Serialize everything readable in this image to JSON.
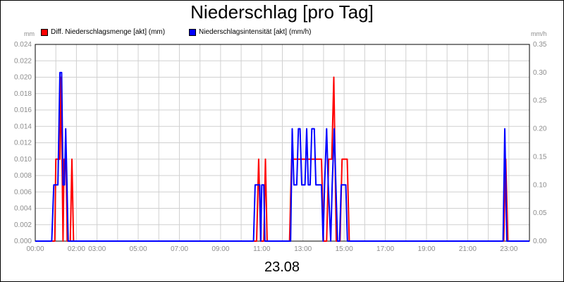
{
  "chart_data": {
    "type": "line",
    "title": "Niederschlag [pro Tag]",
    "xlabel": "23.08",
    "ylabel_left": "mm",
    "ylabel_right": "mm/h",
    "xlim": [
      0,
      24
    ],
    "ylim_left": [
      0,
      0.024
    ],
    "ylim_right": [
      0,
      0.35
    ],
    "grid": true,
    "legend_position": "top-left",
    "x_ticks": [
      {
        "x": 0,
        "label": "00:00"
      },
      {
        "x": 2,
        "label": "02:00"
      },
      {
        "x": 3,
        "label": "03:00"
      },
      {
        "x": 5,
        "label": "05:00"
      },
      {
        "x": 7,
        "label": "07:00"
      },
      {
        "x": 9,
        "label": "09:00"
      },
      {
        "x": 11,
        "label": "11:00"
      },
      {
        "x": 13,
        "label": "13:00"
      },
      {
        "x": 15,
        "label": "15:00"
      },
      {
        "x": 17,
        "label": "17:00"
      },
      {
        "x": 19,
        "label": "19:00"
      },
      {
        "x": 21,
        "label": "21:00"
      },
      {
        "x": 23,
        "label": "23:00"
      }
    ],
    "y_ticks_left": [
      "0.000",
      "0.002",
      "0.004",
      "0.006",
      "0.008",
      "0.010",
      "0.012",
      "0.014",
      "0.016",
      "0.018",
      "0.020",
      "0.022",
      "0.024"
    ],
    "y_ticks_right": [
      "0.00",
      "0.05",
      "0.10",
      "0.15",
      "0.20",
      "0.25",
      "0.30",
      "0.35"
    ],
    "series": [
      {
        "name": "Diff. Niederschlagsmenge [akt] (mm)",
        "color": "#ff0000",
        "axis": "left",
        "points": [
          [
            0,
            0
          ],
          [
            0.95,
            0
          ],
          [
            1.0,
            0.01
          ],
          [
            1.2,
            0.01
          ],
          [
            1.25,
            0.02
          ],
          [
            1.3,
            0.01
          ],
          [
            1.35,
            0
          ],
          [
            1.4,
            0.01
          ],
          [
            1.5,
            0.01
          ],
          [
            1.55,
            0
          ],
          [
            1.7,
            0
          ],
          [
            1.78,
            0.01
          ],
          [
            1.86,
            0
          ],
          [
            10.75,
            0
          ],
          [
            10.85,
            0.01
          ],
          [
            10.95,
            0
          ],
          [
            11.1,
            0
          ],
          [
            11.18,
            0.01
          ],
          [
            11.26,
            0
          ],
          [
            12.35,
            0
          ],
          [
            12.45,
            0.01
          ],
          [
            13.9,
            0.01
          ],
          [
            14.0,
            0
          ],
          [
            14.15,
            0
          ],
          [
            14.25,
            0.01
          ],
          [
            14.4,
            0.01
          ],
          [
            14.5,
            0.02
          ],
          [
            14.62,
            0
          ],
          [
            14.8,
            0
          ],
          [
            14.9,
            0.01
          ],
          [
            15.15,
            0.01
          ],
          [
            15.25,
            0
          ],
          [
            22.75,
            0
          ],
          [
            22.85,
            0.01
          ],
          [
            22.95,
            0
          ],
          [
            24,
            0
          ]
        ]
      },
      {
        "name": "Niederschlagsintensität [akt] (mm/h)",
        "color": "#0000ff",
        "axis": "right",
        "points": [
          [
            0,
            0
          ],
          [
            0.8,
            0
          ],
          [
            0.9,
            0.1
          ],
          [
            1.1,
            0.1
          ],
          [
            1.2,
            0.3
          ],
          [
            1.28,
            0.3
          ],
          [
            1.35,
            0.1
          ],
          [
            1.42,
            0.1
          ],
          [
            1.48,
            0.2
          ],
          [
            1.54,
            0.1
          ],
          [
            1.6,
            0
          ],
          [
            10.6,
            0
          ],
          [
            10.68,
            0.1
          ],
          [
            10.9,
            0.1
          ],
          [
            10.95,
            0
          ],
          [
            11.0,
            0.1
          ],
          [
            11.1,
            0.1
          ],
          [
            11.15,
            0
          ],
          [
            12.4,
            0
          ],
          [
            12.48,
            0.2
          ],
          [
            12.56,
            0.1
          ],
          [
            12.7,
            0.1
          ],
          [
            12.78,
            0.2
          ],
          [
            12.86,
            0.2
          ],
          [
            12.94,
            0.1
          ],
          [
            13.1,
            0.1
          ],
          [
            13.18,
            0.2
          ],
          [
            13.26,
            0.1
          ],
          [
            13.35,
            0.1
          ],
          [
            13.43,
            0.2
          ],
          [
            13.55,
            0.2
          ],
          [
            13.63,
            0.1
          ],
          [
            13.9,
            0.1
          ],
          [
            13.98,
            0
          ],
          [
            14.05,
            0.1
          ],
          [
            14.15,
            0.2
          ],
          [
            14.23,
            0.1
          ],
          [
            14.35,
            0
          ],
          [
            14.42,
            0.1
          ],
          [
            14.52,
            0.2
          ],
          [
            14.6,
            0.1
          ],
          [
            14.68,
            0
          ],
          [
            14.78,
            0
          ],
          [
            14.86,
            0.1
          ],
          [
            15.08,
            0.1
          ],
          [
            15.16,
            0
          ],
          [
            22.72,
            0
          ],
          [
            22.8,
            0.2
          ],
          [
            22.9,
            0
          ],
          [
            24,
            0
          ]
        ]
      }
    ]
  }
}
